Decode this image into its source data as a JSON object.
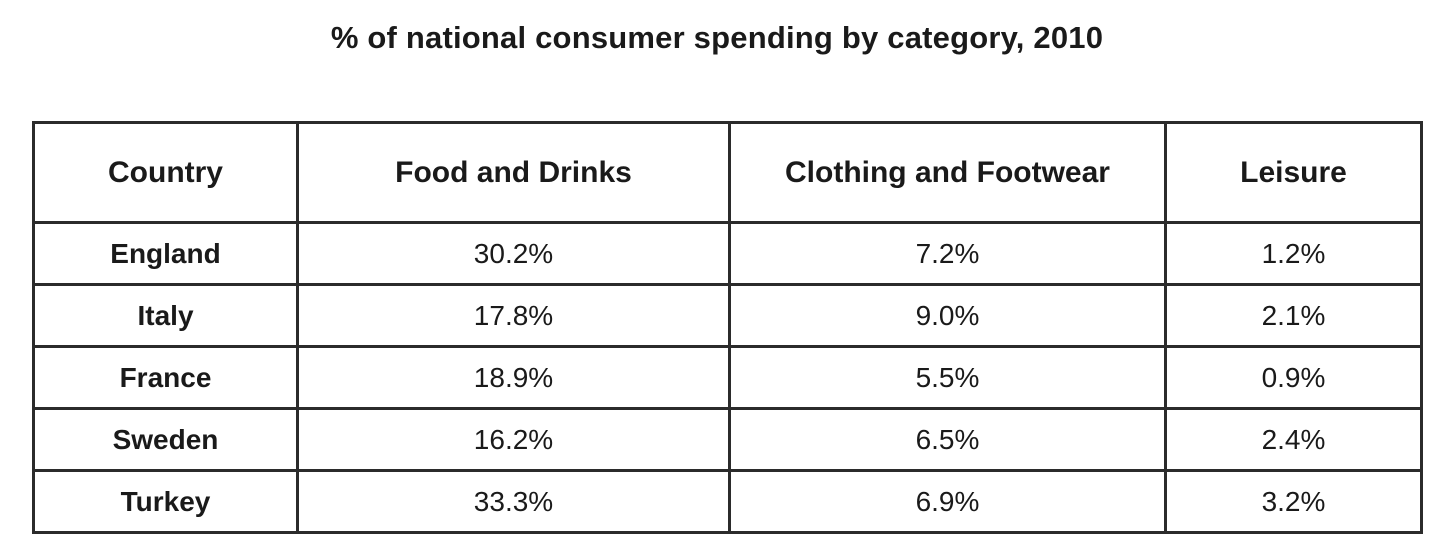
{
  "chart_data": {
    "type": "table",
    "title": "% of national consumer spending by category, 2010",
    "columns": [
      "Country",
      "Food and Drinks",
      "Clothing and Footwear",
      "Leisure"
    ],
    "rows": [
      {
        "country": "England",
        "food_and_drinks": "30.2%",
        "clothing_and_footwear": "7.2%",
        "leisure": "1.2%"
      },
      {
        "country": "Italy",
        "food_and_drinks": "17.8%",
        "clothing_and_footwear": "9.0%",
        "leisure": "2.1%"
      },
      {
        "country": "France",
        "food_and_drinks": "18.9%",
        "clothing_and_footwear": "5.5%",
        "leisure": "0.9%"
      },
      {
        "country": "Sweden",
        "food_and_drinks": "16.2%",
        "clothing_and_footwear": "6.5%",
        "leisure": "2.4%"
      },
      {
        "country": "Turkey",
        "food_and_drinks": "33.3%",
        "clothing_and_footwear": "6.9%",
        "leisure": "3.2%"
      }
    ]
  }
}
